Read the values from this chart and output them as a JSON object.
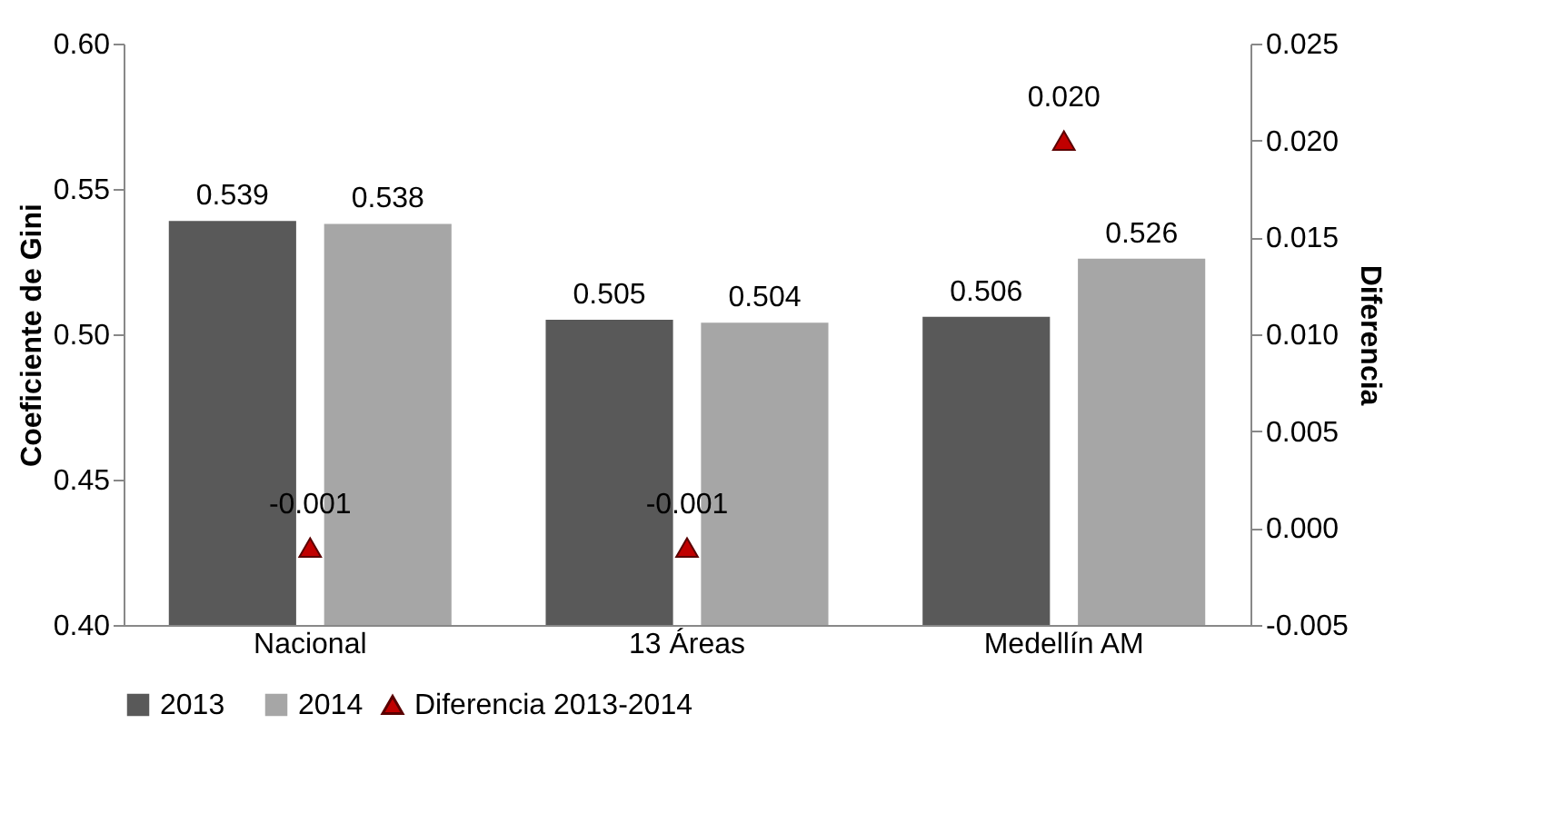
{
  "chart_data": {
    "type": "bar",
    "categories": [
      "Nacional",
      "13 Áreas",
      "Medellín AM"
    ],
    "ylabel": "Coeficiente de Gini",
    "y2label": "Diferencia",
    "series": [
      {
        "name": "2013",
        "type": "bar",
        "color": "#595959",
        "values": [
          0.539,
          0.505,
          0.506
        ],
        "value_labels": [
          "0.539",
          "0.505",
          "0.506"
        ]
      },
      {
        "name": "2014",
        "type": "bar",
        "color": "#a6a6a6",
        "values": [
          0.538,
          0.504,
          0.526
        ],
        "value_labels": [
          "0.538",
          "0.504",
          "0.526"
        ]
      },
      {
        "name": "Diferencia 2013-2014",
        "type": "scatter",
        "axis": "y2",
        "marker": "triangle",
        "color": "#c00000",
        "values": [
          -0.001,
          -0.001,
          0.02
        ],
        "value_labels": [
          "-0.001",
          "-0.001",
          "0.020"
        ]
      }
    ],
    "ylim": [
      0.4,
      0.6
    ],
    "yticks": [
      {
        "value": 0.4,
        "label": "0.40"
      },
      {
        "value": 0.45,
        "label": "0.45"
      },
      {
        "value": 0.5,
        "label": "0.50"
      },
      {
        "value": 0.55,
        "label": "0.55"
      },
      {
        "value": 0.6,
        "label": "0.60"
      }
    ],
    "y2lim": [
      -0.005,
      0.025
    ],
    "y2ticks": [
      {
        "value": -0.005,
        "label": "-0.005"
      },
      {
        "value": 0,
        "label": "0.000"
      },
      {
        "value": 0.005,
        "label": "0.005"
      },
      {
        "value": 0.01,
        "label": "0.010"
      },
      {
        "value": 0.015,
        "label": "0.015"
      },
      {
        "value": 0.02,
        "label": "0.020"
      },
      {
        "value": 0.025,
        "label": "0.025"
      }
    ],
    "grid": false,
    "legend": "bottom"
  }
}
